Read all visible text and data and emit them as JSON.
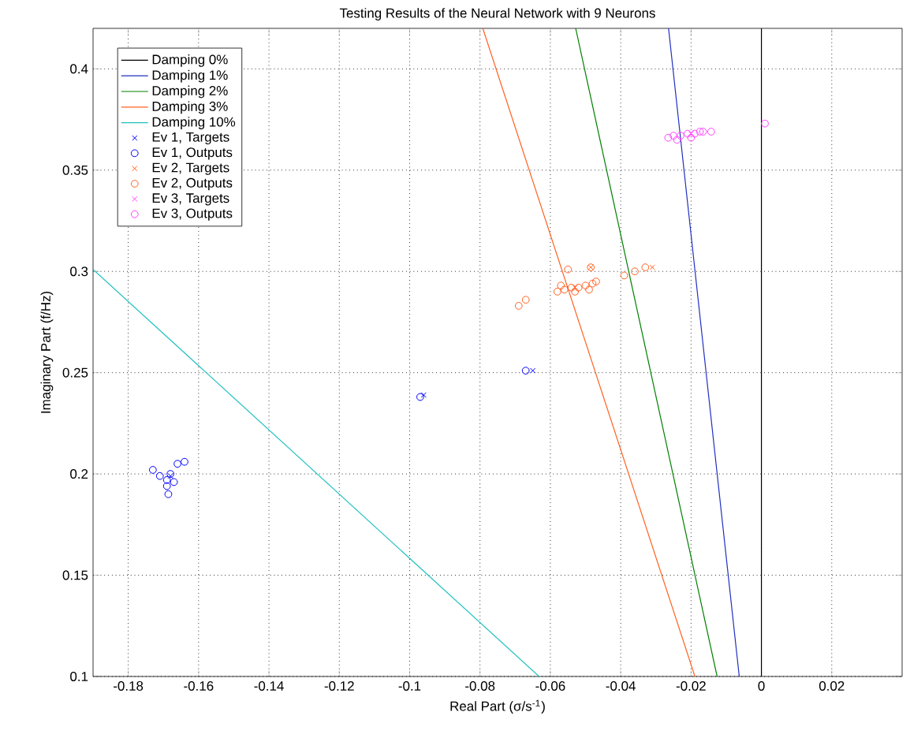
{
  "chart_data": {
    "type": "scatter",
    "title": "Testing Results of the Neural Network with 9 Neurons",
    "xlabel": "Real Part (σ/s$^{-1}$)",
    "ylabel": "Imaginary Part (f/Hz)",
    "xlim": [
      -0.19,
      0.04
    ],
    "ylim": [
      0.1,
      0.42
    ],
    "xticks": [
      -0.18,
      -0.16,
      -0.14,
      -0.12,
      -0.1,
      -0.08,
      -0.06,
      -0.04,
      -0.02,
      0,
      0.02
    ],
    "yticks": [
      0.1,
      0.15,
      0.2,
      0.25,
      0.3,
      0.35,
      0.4
    ],
    "grid": true,
    "legend": "top left",
    "series": [
      {
        "name": "Damping 0%",
        "type": "line",
        "color": "#000000",
        "x": [
          0,
          0
        ],
        "values": [
          0.1,
          0.42
        ]
      },
      {
        "name": "Damping 1%",
        "type": "line",
        "color": "#2030c0",
        "x": [
          -0.0063,
          -0.0264
        ],
        "values": [
          0.1,
          0.42
        ]
      },
      {
        "name": "Damping 2%",
        "type": "line",
        "color": "#008000",
        "x": [
          -0.0126,
          -0.0528
        ],
        "values": [
          0.1,
          0.42
        ]
      },
      {
        "name": "Damping 3%",
        "type": "line",
        "color": "#ff6020",
        "x": [
          -0.0189,
          -0.0792
        ],
        "values": [
          0.1,
          0.42
        ]
      },
      {
        "name": "Damping 10%",
        "type": "line",
        "color": "#20c0c0",
        "x": [
          -0.0632,
          -0.19
        ],
        "values": [
          0.1,
          0.301
        ]
      },
      {
        "name": "Ev 1, Targets",
        "marker": "cross",
        "color": "#0000ff",
        "x": [
          -0.168,
          -0.096,
          -0.065
        ],
        "values": [
          0.199,
          0.239,
          0.251
        ]
      },
      {
        "name": "Ev 1, Outputs",
        "marker": "circle",
        "color": "#0000ff",
        "x": [
          -0.173,
          -0.171,
          -0.169,
          -0.168,
          -0.167,
          -0.169,
          -0.1686,
          -0.166,
          -0.164,
          -0.097,
          -0.067
        ],
        "values": [
          0.202,
          0.199,
          0.197,
          0.2,
          0.196,
          0.194,
          0.19,
          0.205,
          0.206,
          0.238,
          0.251
        ]
      },
      {
        "name": "Ev 2, Targets",
        "marker": "cross",
        "color": "#ff6020",
        "x": [
          -0.053,
          -0.0485,
          -0.031
        ],
        "values": [
          0.292,
          0.302,
          0.302
        ]
      },
      {
        "name": "Ev 2, Outputs",
        "marker": "circle",
        "color": "#ff6020",
        "x": [
          -0.058,
          -0.056,
          -0.054,
          -0.052,
          -0.05,
          -0.048,
          -0.057,
          -0.053,
          -0.049,
          -0.055,
          -0.0485,
          -0.047,
          -0.069,
          -0.067,
          -0.039,
          -0.036,
          -0.033
        ],
        "values": [
          0.29,
          0.291,
          0.292,
          0.292,
          0.293,
          0.294,
          0.293,
          0.29,
          0.291,
          0.301,
          0.302,
          0.295,
          0.283,
          0.286,
          0.298,
          0.3,
          0.302
        ]
      },
      {
        "name": "Ev 3, Targets",
        "marker": "cross",
        "color": "#ff40ff",
        "x": [
          -0.02
        ],
        "values": [
          0.368
        ]
      },
      {
        "name": "Ev 3, Outputs",
        "marker": "circle",
        "color": "#ff40ff",
        "x": [
          -0.0265,
          -0.025,
          -0.023,
          -0.021,
          -0.019,
          -0.0175,
          -0.0166,
          -0.024,
          -0.02,
          -0.0143,
          0.001
        ],
        "values": [
          0.366,
          0.367,
          0.367,
          0.368,
          0.368,
          0.369,
          0.369,
          0.365,
          0.366,
          0.369,
          0.373
        ]
      }
    ]
  }
}
